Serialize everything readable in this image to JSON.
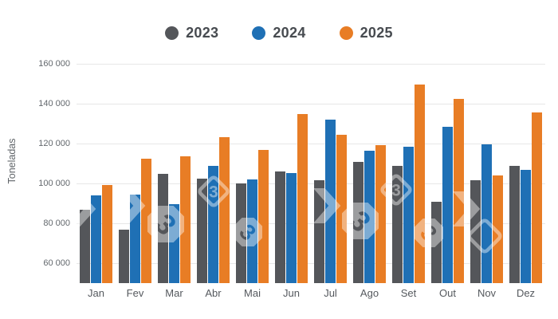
{
  "colors": {
    "series_2023": "#54565a",
    "series_2024": "#1f70b5",
    "series_2025": "#e87d25",
    "gridline": "#e7e7e7",
    "tick_text": "#63686d",
    "legend_text": "#474b50",
    "background": "#ffffff"
  },
  "legend": {
    "items": [
      {
        "label": "2023",
        "color": "#54565a"
      },
      {
        "label": "2024",
        "color": "#1f70b5"
      },
      {
        "label": "2025",
        "color": "#e87d25"
      }
    ]
  },
  "watermark": {
    "glyph": "3"
  },
  "chart_data": {
    "type": "bar",
    "title": "",
    "xlabel": "",
    "ylabel": "Toneladas",
    "categories": [
      "Jan",
      "Fev",
      "Mar",
      "Abr",
      "Mai",
      "Jun",
      "Jul",
      "Ago",
      "Set",
      "Out",
      "Nov",
      "Dez"
    ],
    "series": [
      {
        "name": "2023",
        "color": "#54565a",
        "values": [
          87000,
          76700,
          104700,
          102600,
          99900,
          106000,
          101500,
          110800,
          108700,
          90900,
          101600,
          108700
        ]
      },
      {
        "name": "2024",
        "color": "#1f70b5",
        "values": [
          94100,
          94400,
          89800,
          108800,
          102000,
          105200,
          131900,
          116300,
          118300,
          128600,
          119600,
          106800
        ]
      },
      {
        "name": "2025",
        "color": "#e87d25",
        "values": [
          99400,
          112400,
          113500,
          123300,
          117000,
          134700,
          124400,
          119300,
          149500,
          142300,
          104100,
          135500
        ]
      }
    ],
    "ylim": [
      50000,
      165000
    ],
    "yticks": [
      60000,
      80000,
      100000,
      120000,
      140000,
      160000
    ],
    "ytick_labels": [
      "60 000",
      "80 000",
      "100 000",
      "120 000",
      "140 000",
      "160 000"
    ],
    "grid": "horizontal",
    "legend_position": "top"
  }
}
